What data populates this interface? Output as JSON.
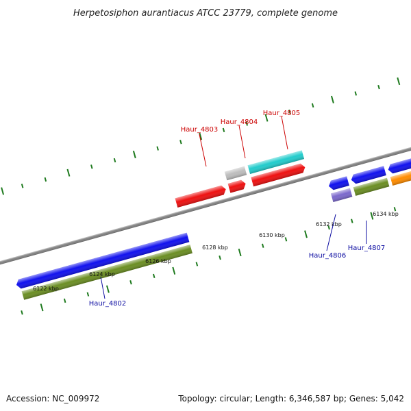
{
  "title": "Herpetosiphon aurantiacus ATCC 23779, complete genome",
  "footer": {
    "accession": "Accession: NC_009972",
    "stats": "Topology: circular; Length: 6,346,587 bp; Genes: 5,042"
  },
  "colors": {
    "backbone": "#7a7a7a",
    "tick": "#1e7a1e",
    "label_forward": "#cc0000",
    "label_reverse": "#0a0aa0"
  },
  "ticks": [
    {
      "kbp": 6122,
      "label": "6122 kbp"
    },
    {
      "kbp": 6124,
      "label": "6124 kbp"
    },
    {
      "kbp": 6126,
      "label": "6126 kbp"
    },
    {
      "kbp": 6128,
      "label": "6128 kbp"
    },
    {
      "kbp": 6130,
      "label": "6130 kbp"
    },
    {
      "kbp": 6132,
      "label": "6132 kbp"
    },
    {
      "kbp": 6134,
      "label": "6134 kbp"
    }
  ],
  "gene_labels": [
    {
      "text": "Haur_4802",
      "strand": "reverse"
    },
    {
      "text": "Haur_4803",
      "strand": "forward"
    },
    {
      "text": "Haur_4804",
      "strand": "forward"
    },
    {
      "text": "Haur_4805",
      "strand": "forward"
    },
    {
      "text": "Haur_4806",
      "strand": "reverse"
    },
    {
      "text": "Haur_4807",
      "strand": "reverse"
    }
  ]
}
